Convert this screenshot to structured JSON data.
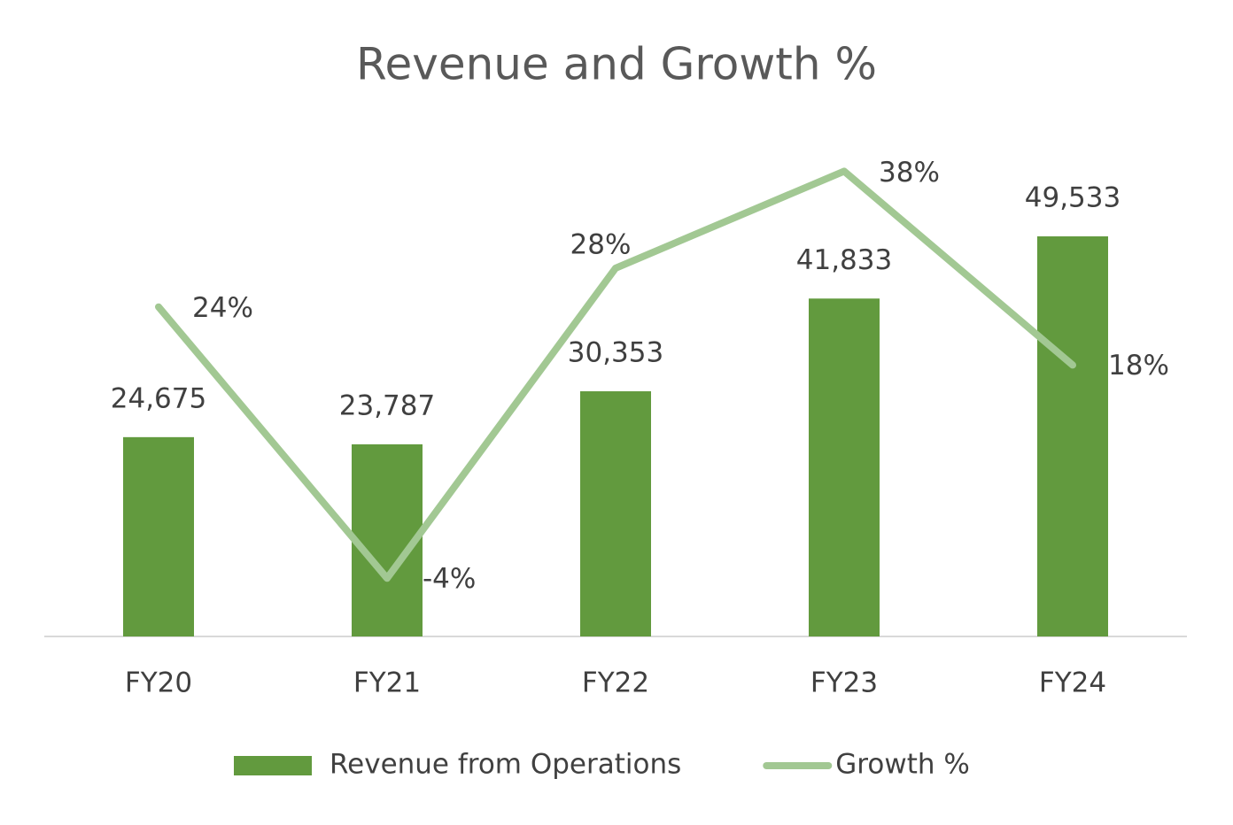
{
  "chart_data": {
    "type": "bar-line",
    "title": "Revenue and Growth %",
    "categories": [
      "FY20",
      "FY21",
      "FY22",
      "FY23",
      "FY24"
    ],
    "ylim": [
      0,
      60000
    ],
    "y2lim": [
      -10,
      40
    ],
    "series": [
      {
        "name": "Revenue from Operations",
        "type": "bar",
        "color": "#629a3e",
        "values": [
          24675,
          23787,
          30353,
          41833,
          49533
        ],
        "value_labels": [
          "24,675",
          "23,787",
          "30,353",
          "41,833",
          "49,533"
        ]
      },
      {
        "name": "Growth %",
        "type": "line",
        "axis": "y2",
        "color": "#a2c893",
        "values": [
          24,
          -4,
          28,
          38,
          18
        ],
        "value_labels": [
          "24%",
          "-4%",
          "28%",
          "38%",
          "18%"
        ]
      }
    ]
  }
}
